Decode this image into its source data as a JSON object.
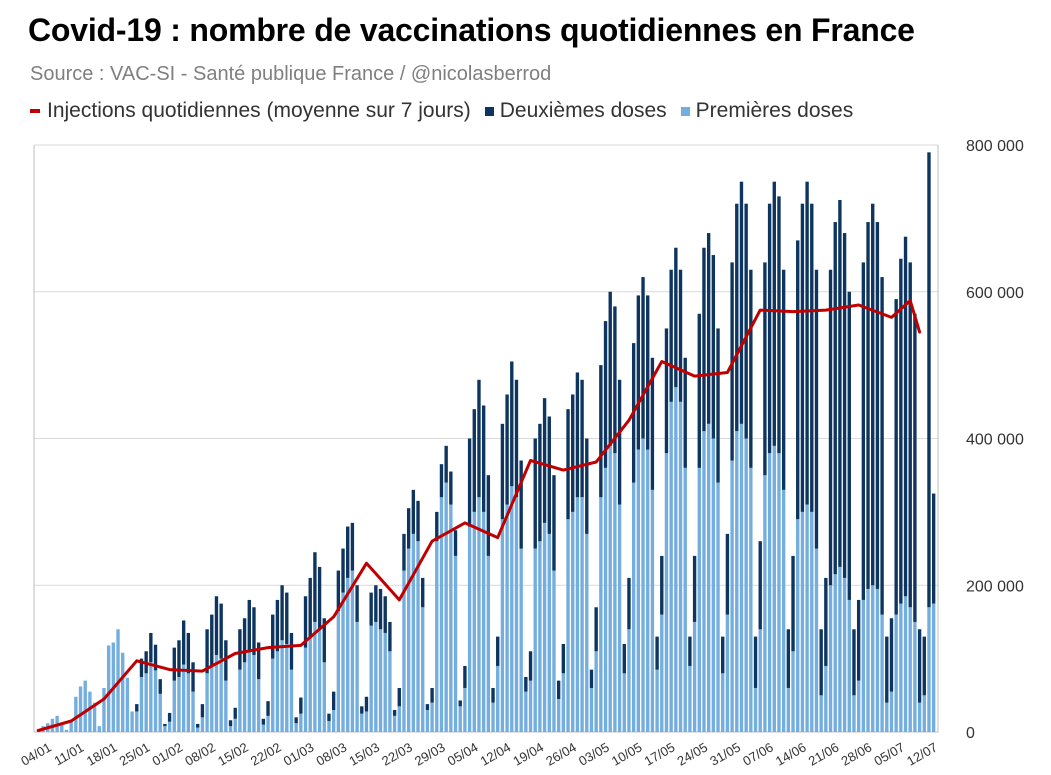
{
  "chart_data": {
    "type": "bar",
    "title": "Covid-19 : nombre de vaccinations quotidiennes en France",
    "subtitle": "Source : VAC-SI - Santé publique France / @nicolasberrod",
    "stacked": true,
    "ylim": [
      0,
      800000
    ],
    "yticks": [
      0,
      200000,
      400000,
      600000,
      800000
    ],
    "ytick_labels": [
      "0",
      "200 000",
      "400 000",
      "600 000",
      "800 000"
    ],
    "y_axis_side": "right",
    "grid": true,
    "legend_position": "top",
    "x_start": "04/01",
    "xtick_labels": [
      "04/01",
      "11/01",
      "18/01",
      "25/01",
      "01/02",
      "08/02",
      "15/02",
      "22/02",
      "01/03",
      "08/03",
      "15/03",
      "22/03",
      "29/03",
      "05/04",
      "12/04",
      "19/04",
      "26/04",
      "03/05",
      "10/05",
      "17/05",
      "24/05",
      "31/05",
      "07/06",
      "14/06",
      "21/06",
      "28/06",
      "05/07",
      "12/07"
    ],
    "series": [
      {
        "name": "Premières doses",
        "kind": "bar",
        "color": "#74aede",
        "weekly_pattern_values": [
          [
            4000,
            8000,
            12000,
            18000,
            22000,
            10000,
            3000
          ],
          [
            15000,
            48000,
            62000,
            70000,
            55000,
            40000,
            8000
          ],
          [
            60000,
            118000,
            122000,
            140000,
            108000,
            74000,
            28000
          ],
          [
            28000,
            75000,
            80000,
            95000,
            84000,
            52000,
            8000
          ],
          [
            14000,
            70000,
            75000,
            92000,
            80000,
            55000,
            6000
          ],
          [
            20000,
            80000,
            90000,
            105000,
            100000,
            70000,
            8000
          ],
          [
            18000,
            85000,
            95000,
            110000,
            105000,
            72000,
            10000
          ],
          [
            22000,
            100000,
            110000,
            125000,
            120000,
            85000,
            12000
          ],
          [
            25000,
            115000,
            130000,
            150000,
            140000,
            95000,
            15000
          ],
          [
            30000,
            165000,
            190000,
            210000,
            220000,
            150000,
            25000
          ],
          [
            28000,
            145000,
            150000,
            140000,
            135000,
            110000,
            22000
          ],
          [
            35000,
            220000,
            250000,
            270000,
            260000,
            170000,
            30000
          ],
          [
            40000,
            260000,
            320000,
            340000,
            310000,
            240000,
            35000
          ],
          [
            60000,
            280000,
            300000,
            320000,
            300000,
            240000,
            40000
          ],
          [
            90000,
            290000,
            310000,
            335000,
            320000,
            250000,
            55000
          ],
          [
            70000,
            250000,
            260000,
            285000,
            270000,
            220000,
            45000
          ],
          [
            80000,
            290000,
            300000,
            320000,
            320000,
            270000,
            60000
          ],
          [
            110000,
            320000,
            360000,
            390000,
            380000,
            310000,
            80000
          ],
          [
            140000,
            340000,
            385000,
            400000,
            385000,
            330000,
            85000
          ],
          [
            160000,
            380000,
            450000,
            470000,
            450000,
            360000,
            90000
          ],
          [
            150000,
            360000,
            410000,
            420000,
            400000,
            340000,
            80000
          ],
          [
            160000,
            370000,
            410000,
            420000,
            400000,
            360000,
            60000
          ],
          [
            140000,
            350000,
            380000,
            390000,
            380000,
            330000,
            60000
          ],
          [
            110000,
            290000,
            300000,
            310000,
            300000,
            250000,
            50000
          ],
          [
            90000,
            200000,
            215000,
            225000,
            210000,
            180000,
            50000
          ],
          [
            70000,
            180000,
            195000,
            200000,
            195000,
            160000,
            40000
          ],
          [
            55000,
            160000,
            175000,
            185000,
            170000,
            150000,
            40000
          ],
          [
            50000,
            170000,
            175000
          ]
        ],
        "values": []
      },
      {
        "name": "Deuxièmes doses",
        "kind": "bar",
        "color": "#0d3560",
        "weekly_pattern_values": [
          [
            0,
            0,
            0,
            0,
            0,
            0,
            0
          ],
          [
            0,
            0,
            0,
            0,
            0,
            0,
            0
          ],
          [
            0,
            0,
            0,
            0,
            0,
            0,
            0
          ],
          [
            10000,
            25000,
            30000,
            40000,
            35000,
            20000,
            3000
          ],
          [
            12000,
            45000,
            50000,
            60000,
            55000,
            40000,
            5000
          ],
          [
            18000,
            60000,
            70000,
            80000,
            75000,
            55000,
            8000
          ],
          [
            15000,
            55000,
            60000,
            70000,
            65000,
            50000,
            8000
          ],
          [
            20000,
            60000,
            70000,
            75000,
            70000,
            50000,
            8000
          ],
          [
            22000,
            70000,
            80000,
            95000,
            85000,
            60000,
            10000
          ],
          [
            25000,
            55000,
            60000,
            70000,
            65000,
            50000,
            10000
          ],
          [
            20000,
            45000,
            50000,
            55000,
            50000,
            40000,
            8000
          ],
          [
            25000,
            50000,
            55000,
            60000,
            55000,
            40000,
            8000
          ],
          [
            20000,
            40000,
            45000,
            50000,
            45000,
            35000,
            8000
          ],
          [
            30000,
            120000,
            140000,
            160000,
            145000,
            110000,
            20000
          ],
          [
            40000,
            130000,
            150000,
            170000,
            160000,
            120000,
            20000
          ],
          [
            40000,
            150000,
            160000,
            170000,
            160000,
            130000,
            25000
          ],
          [
            40000,
            150000,
            160000,
            170000,
            160000,
            130000,
            25000
          ],
          [
            60000,
            180000,
            200000,
            210000,
            200000,
            170000,
            40000
          ],
          [
            70000,
            190000,
            210000,
            220000,
            210000,
            180000,
            45000
          ],
          [
            80000,
            170000,
            180000,
            190000,
            180000,
            150000,
            40000
          ],
          [
            90000,
            210000,
            250000,
            260000,
            250000,
            210000,
            50000
          ],
          [
            110000,
            270000,
            310000,
            330000,
            320000,
            270000,
            70000
          ],
          [
            120000,
            290000,
            340000,
            360000,
            350000,
            300000,
            80000
          ],
          [
            130000,
            380000,
            420000,
            440000,
            420000,
            380000,
            90000
          ],
          [
            120000,
            430000,
            480000,
            500000,
            470000,
            420000,
            90000
          ],
          [
            110000,
            460000,
            500000,
            520000,
            500000,
            460000,
            90000
          ],
          [
            100000,
            430000,
            470000,
            490000,
            470000,
            420000,
            100000
          ],
          [
            80000,
            620000,
            150000
          ]
        ],
        "values": []
      },
      {
        "name": "Injections quotidiennes (moyenne sur 7 jours)",
        "kind": "line",
        "color": "#c00000",
        "points": [
          [
            0,
            2000
          ],
          [
            7,
            15000
          ],
          [
            14,
            45000
          ],
          [
            21,
            97000
          ],
          [
            28,
            85000
          ],
          [
            35,
            83000
          ],
          [
            42,
            107000
          ],
          [
            49,
            115000
          ],
          [
            56,
            118000
          ],
          [
            63,
            157000
          ],
          [
            70,
            230000
          ],
          [
            77,
            180000
          ],
          [
            84,
            260000
          ],
          [
            91,
            285000
          ],
          [
            98,
            265000
          ],
          [
            105,
            370000
          ],
          [
            112,
            357000
          ],
          [
            119,
            368000
          ],
          [
            126,
            425000
          ],
          [
            133,
            505000
          ],
          [
            140,
            485000
          ],
          [
            147,
            490000
          ],
          [
            154,
            575000
          ],
          [
            161,
            573000
          ],
          [
            168,
            575000
          ],
          [
            175,
            582000
          ],
          [
            182,
            565000
          ],
          [
            186,
            588000
          ],
          [
            188,
            545000
          ]
        ]
      }
    ]
  },
  "legend": {
    "line_label": "Injections quotidiennes (moyenne sur 7 jours)",
    "second_label": "Deuxièmes doses",
    "first_label": "Premières doses"
  }
}
